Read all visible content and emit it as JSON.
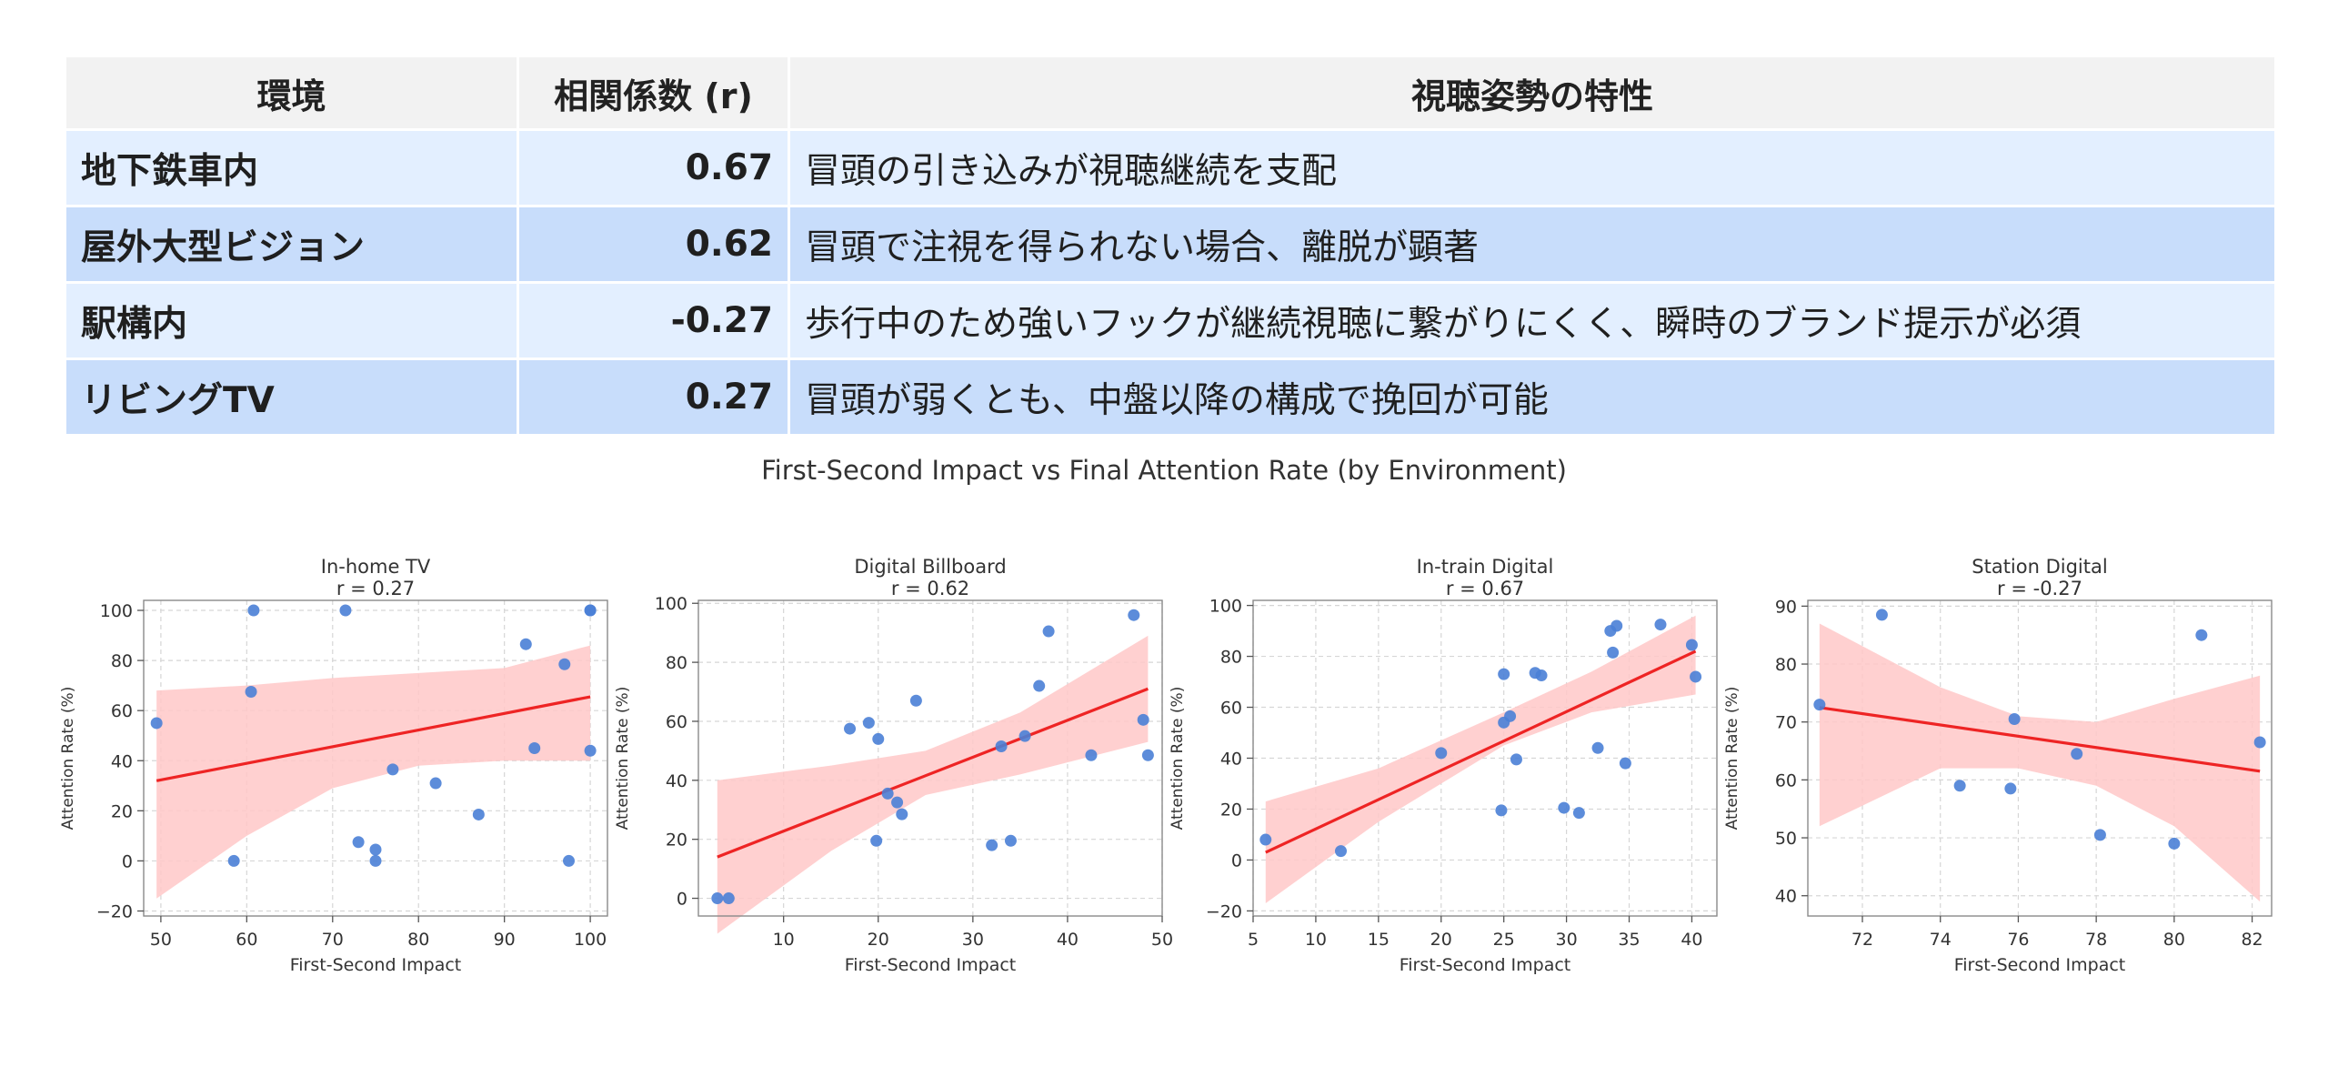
{
  "table": {
    "headers": [
      "環境",
      "相関係数 (r)",
      "視聴姿勢の特性"
    ],
    "rows": [
      {
        "env": "地下鉄車内",
        "r": "0.67",
        "desc": "冒頭の引き込みが視聴継続を支配"
      },
      {
        "env": "屋外大型ビジョン",
        "r": "0.62",
        "desc": "冒頭で注視を得られない場合、離脱が顕著"
      },
      {
        "env": "駅構内",
        "r": "-0.27",
        "desc": "歩行中のため強いフックが継続視聴に繋がりにくく、瞬時のブランド提示が必須"
      },
      {
        "env": "リビングTV",
        "r": "0.27",
        "desc": "冒頭が弱くとも、中盤以降の構成で挽回が可能"
      }
    ]
  },
  "suptitle": "First-Second Impact vs Final Attention Rate (by Environment)",
  "colors": {
    "point": "#4a7fd6",
    "line": "#ee2424",
    "band": "#ffc8c8",
    "header_bg": "#f2f2f2",
    "row_light": "#e3efff",
    "row_dark": "#c8ddfb"
  },
  "chart_data": [
    {
      "type": "scatter",
      "title": "In-home TV",
      "subtitle": "r = 0.27",
      "xlabel": "First-Second Impact",
      "ylabel": "Attention Rate (%)",
      "xlim": [
        48,
        102
      ],
      "ylim": [
        -22,
        104
      ],
      "xticks": [
        50,
        60,
        70,
        80,
        90,
        100
      ],
      "yticks": [
        -20,
        0,
        20,
        40,
        60,
        80,
        100
      ],
      "x": [
        49.5,
        58.5,
        60.5,
        60.8,
        71.5,
        73,
        75,
        75,
        77,
        82,
        87,
        92.5,
        93.5,
        97,
        97.5,
        100,
        100,
        100
      ],
      "y": [
        55,
        0,
        67.5,
        100,
        100,
        7.5,
        4.5,
        0,
        36.5,
        31,
        18.5,
        86.5,
        45,
        78.5,
        0,
        100,
        100,
        44
      ],
      "fit": {
        "x": [
          49.5,
          100
        ],
        "y": [
          32,
          65.5
        ]
      },
      "band": {
        "x": [
          49.5,
          60,
          70,
          80,
          90,
          100
        ],
        "upper": [
          68,
          70,
          73,
          75,
          77,
          86
        ],
        "lower": [
          -15,
          10,
          29,
          38,
          40,
          40
        ]
      },
      "grid": true
    },
    {
      "type": "scatter",
      "title": "Digital Billboard",
      "subtitle": "r = 0.62",
      "xlabel": "First-Second Impact",
      "ylabel": "Attention Rate (%)",
      "xlim": [
        1,
        50
      ],
      "ylim": [
        -6,
        101
      ],
      "xticks": [
        10,
        20,
        30,
        40,
        50
      ],
      "yticks": [
        0,
        20,
        40,
        60,
        80,
        100
      ],
      "x": [
        3,
        4.2,
        17,
        19,
        19.8,
        20,
        21,
        22,
        22.5,
        24,
        32,
        33,
        34,
        35.5,
        37,
        38,
        42.5,
        47,
        48,
        48.5
      ],
      "y": [
        0,
        0,
        57.5,
        59.5,
        19.5,
        54,
        35.5,
        32.5,
        28.5,
        67,
        18,
        51.5,
        19.5,
        55,
        72,
        90.5,
        48.5,
        96,
        60.5,
        48.5
      ],
      "fit": {
        "x": [
          3,
          48.5
        ],
        "y": [
          14,
          71
        ]
      },
      "band": {
        "x": [
          3,
          15,
          25,
          35,
          48.5
        ],
        "upper": [
          40,
          45,
          50,
          63,
          89
        ],
        "lower": [
          -12,
          16,
          35,
          42,
          53
        ]
      },
      "grid": true
    },
    {
      "type": "scatter",
      "title": "In-train Digital",
      "subtitle": "r = 0.67",
      "xlabel": "First-Second Impact",
      "ylabel": "Attention Rate (%)",
      "xlim": [
        5,
        42
      ],
      "ylim": [
        -22,
        102
      ],
      "xticks": [
        5,
        10,
        15,
        20,
        25,
        30,
        35,
        40
      ],
      "yticks": [
        -20,
        0,
        20,
        40,
        60,
        80,
        100
      ],
      "x": [
        6,
        12,
        20,
        24.8,
        25,
        25,
        25.5,
        26,
        27.5,
        28,
        29.8,
        31,
        32.5,
        33.5,
        33.7,
        34,
        34.7,
        37.5,
        40,
        40.3
      ],
      "y": [
        8,
        3.5,
        42,
        19.5,
        54,
        73,
        56.5,
        39.5,
        73.5,
        72.5,
        20.5,
        18.5,
        44,
        90,
        81.5,
        92,
        38,
        92.5,
        84.5,
        72
      ],
      "fit": {
        "x": [
          6,
          40.3
        ],
        "y": [
          3,
          82
        ]
      },
      "band": {
        "x": [
          6,
          15,
          25,
          32,
          40.3
        ],
        "upper": [
          23,
          36,
          58,
          74,
          96
        ],
        "lower": [
          -17,
          15,
          45,
          58,
          65
        ]
      },
      "grid": true
    },
    {
      "type": "scatter",
      "title": "Station Digital",
      "subtitle": "r = -0.27",
      "xlabel": "First-Second Impact",
      "ylabel": "Attention Rate (%)",
      "xlim": [
        70.6,
        82.5
      ],
      "ylim": [
        36.5,
        91
      ],
      "xticks": [
        72,
        74,
        76,
        78,
        80,
        82
      ],
      "yticks": [
        40,
        50,
        60,
        70,
        80,
        90
      ],
      "x": [
        70.9,
        72.5,
        74.5,
        75.8,
        75.9,
        77.5,
        78.1,
        80,
        80.7,
        82.2
      ],
      "y": [
        73,
        88.5,
        59,
        58.5,
        70.5,
        64.5,
        50.5,
        49,
        85,
        66.5
      ],
      "fit": {
        "x": [
          70.9,
          82.2
        ],
        "y": [
          72.5,
          61.5
        ]
      },
      "band": {
        "x": [
          70.9,
          74,
          76,
          78,
          80,
          82.2
        ],
        "upper": [
          87,
          76,
          71,
          70,
          74,
          78
        ],
        "lower": [
          52,
          62,
          62,
          59,
          52,
          39
        ]
      },
      "grid": true
    }
  ]
}
